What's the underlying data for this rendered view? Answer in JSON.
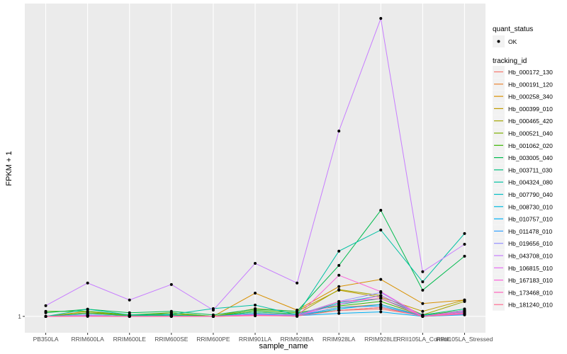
{
  "chart_data": {
    "type": "line",
    "xlabel": "sample_name",
    "ylabel": "FPKM + 1",
    "yticks": [
      1
    ],
    "ylim": [
      -4.5,
      106
    ],
    "categories": [
      "PB350LA",
      "RRIM600LA",
      "RRIM600LE",
      "RRIM600SE",
      "RRIM600PE",
      "RRIM901LA",
      "RRIM928BA",
      "RRIM928LA",
      "RRIM928LE",
      "RRII105LA_Control",
      "RRII105LA_Stressed"
    ],
    "legend_shape": {
      "title": "quant_status",
      "entries": [
        "OK"
      ]
    },
    "legend_color": {
      "title": "tracking_id",
      "placement": "right"
    },
    "series": [
      {
        "name": "Hb_000172_130",
        "color": "#F8766D",
        "values": [
          1,
          1.2,
          1,
          1.1,
          1,
          1.3,
          1.2,
          3,
          3.5,
          1.2,
          2.5
        ]
      },
      {
        "name": "Hb_000191_120",
        "color": "#EA8331",
        "values": [
          1,
          1.4,
          1,
          1.2,
          1,
          1.6,
          1.3,
          4,
          5,
          1.3,
          3
        ]
      },
      {
        "name": "Hb_000258_340",
        "color": "#D89000",
        "values": [
          1,
          2.2,
          1.2,
          1.7,
          1,
          8.8,
          3.1,
          11,
          13.4,
          5.3,
          6.5
        ]
      },
      {
        "name": "Hb_000399_010",
        "color": "#C09B00",
        "values": [
          1,
          2.7,
          1,
          2.2,
          1,
          3.6,
          2.7,
          9.8,
          7.4,
          2.7,
          6.5
        ]
      },
      {
        "name": "Hb_000465_420",
        "color": "#A3A500",
        "values": [
          1,
          2.2,
          1.5,
          1.7,
          1,
          2.5,
          1.7,
          10,
          8,
          1.5,
          6
        ]
      },
      {
        "name": "Hb_000521_040",
        "color": "#7CAE00",
        "values": [
          1,
          1.5,
          1,
          1.3,
          1,
          2,
          1.5,
          3,
          4,
          1.2,
          2
        ]
      },
      {
        "name": "Hb_001062_020",
        "color": "#39B600",
        "values": [
          2.7,
          2.7,
          1.5,
          2.2,
          1,
          3,
          2.2,
          4.5,
          6,
          1.3,
          3
        ]
      },
      {
        "name": "Hb_003005_040",
        "color": "#00BB4E",
        "values": [
          2.2,
          3.4,
          2.2,
          2.7,
          1.5,
          3.4,
          2.7,
          18.1,
          36.6,
          9.8,
          21.2
        ]
      },
      {
        "name": "Hb_003711_030",
        "color": "#00BF7D",
        "values": [
          1,
          2,
          1.2,
          1.5,
          1,
          2.5,
          1.8,
          5,
          7,
          1.5,
          3.5
        ]
      },
      {
        "name": "Hb_004324_080",
        "color": "#00C1A3",
        "values": [
          1,
          3.4,
          1.5,
          1.7,
          3.6,
          4.8,
          1.5,
          22.9,
          30,
          12.6,
          28.8
        ]
      },
      {
        "name": "Hb_007790_040",
        "color": "#00BFC4",
        "values": [
          1,
          1.5,
          1,
          1.2,
          1,
          2,
          1.4,
          5.5,
          8,
          1.3,
          2.5
        ]
      },
      {
        "name": "Hb_008730_010",
        "color": "#00BAE0",
        "values": [
          1,
          1.3,
          1,
          1.1,
          1,
          1.5,
          1.2,
          3.5,
          5,
          1.1,
          1.8
        ]
      },
      {
        "name": "Hb_010757_010",
        "color": "#00B0F6",
        "values": [
          1,
          1.2,
          1,
          1,
          1,
          1.5,
          1.2,
          2,
          2.5,
          1,
          1.5
        ]
      },
      {
        "name": "Hb_011478_010",
        "color": "#35A2FF",
        "values": [
          1,
          1.3,
          1,
          1.1,
          1,
          1.6,
          1.3,
          4,
          4.5,
          1,
          1.6
        ]
      },
      {
        "name": "Hb_019656_010",
        "color": "#9590FF",
        "values": [
          1,
          1.5,
          1,
          1,
          1,
          1.8,
          1.5,
          6,
          9,
          1,
          3
        ]
      },
      {
        "name": "Hb_043708_010",
        "color": "#C77CFF",
        "values": [
          4.6,
          12.2,
          6.5,
          11.7,
          3.1,
          18.8,
          12.2,
          63.2,
          101,
          16,
          25.2
        ]
      },
      {
        "name": "Hb_106815_010",
        "color": "#E76BF3",
        "values": [
          1,
          1.2,
          1,
          1.1,
          1,
          1.4,
          1.2,
          5,
          8,
          1.1,
          2
        ]
      },
      {
        "name": "Hb_167183_010",
        "color": "#FA62DB",
        "values": [
          1,
          1,
          1,
          1,
          1,
          1.5,
          1,
          14.8,
          9.3,
          1,
          2.7
        ]
      },
      {
        "name": "Hb_173468_010",
        "color": "#FF62BC",
        "values": [
          1,
          1.1,
          1,
          1,
          1,
          1.3,
          1.1,
          6,
          7,
          1,
          2.2
        ]
      },
      {
        "name": "Hb_181240_010",
        "color": "#FF6C91",
        "values": [
          1,
          1.1,
          1,
          1,
          1,
          1.2,
          1.1,
          3,
          4,
          1,
          1.8
        ]
      }
    ]
  }
}
